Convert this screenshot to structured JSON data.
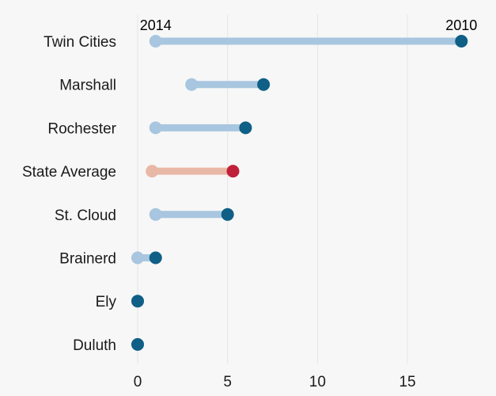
{
  "chart_data": {
    "type": "dumbbell",
    "title": "",
    "xlabel": "",
    "ylabel": "",
    "xlim": [
      0,
      19
    ],
    "x_ticks": [
      0,
      5,
      10,
      15
    ],
    "grid": "vertical",
    "legend": "direct labels at top row",
    "series_labels": {
      "start": "2014",
      "end": "2010"
    },
    "categories": [
      "Twin Cities",
      "Marshall",
      "Rochester",
      "State Average",
      "St. Cloud",
      "Brainerd",
      "Ely",
      "Duluth"
    ],
    "series": [
      {
        "name": "2014",
        "values": [
          1,
          3,
          1,
          0.8,
          1,
          0,
          0,
          0
        ]
      },
      {
        "name": "2010",
        "values": [
          18,
          7,
          6,
          5.3,
          5,
          1,
          0,
          0
        ]
      }
    ],
    "highlight_category": "State Average",
    "colors": {
      "start": "#a8c6df",
      "end": "#0f5f86",
      "bar": "#a8c6df",
      "highlight_start": "#e8b8a6",
      "highlight_end": "#c0213a",
      "highlight_bar": "#e8b8a6",
      "grid": "#e6e6e6",
      "background": "#f7f7f7"
    }
  }
}
